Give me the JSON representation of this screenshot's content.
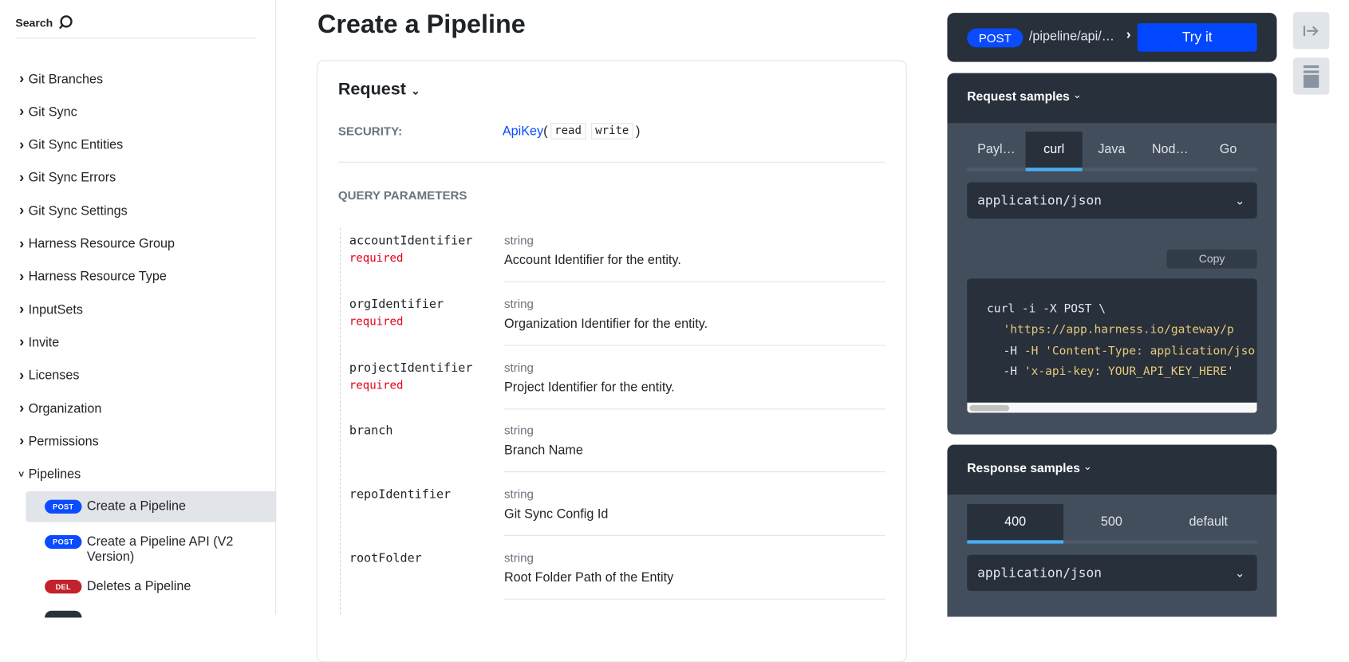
{
  "sidebar": {
    "search_label": "Search",
    "groups": [
      "Git Branches",
      "Git Sync",
      "Git Sync Entities",
      "Git Sync Errors",
      "Git Sync Settings",
      "Harness Resource Group",
      "Harness Resource Type",
      "InputSets",
      "Invite",
      "Licenses",
      "Organization",
      "Permissions",
      "Pipelines"
    ],
    "endpoints": [
      {
        "method": "POST",
        "label": "Create a Pipeline",
        "color": "#0a4bff"
      },
      {
        "method": "POST",
        "label": "Create a Pipeline API (V2 Version)",
        "color": "#0a4bff"
      },
      {
        "method": "DEL",
        "label": "Deletes a Pipeline",
        "color": "#c1222b"
      }
    ]
  },
  "main": {
    "title": "Create a Pipeline",
    "request_label": "Request",
    "security_label": "SECURITY:",
    "security_scheme": "ApiKey",
    "scopes": [
      "read",
      "write"
    ],
    "query_label": "QUERY PARAMETERS",
    "params": [
      {
        "name": "accountIdentifier",
        "required": "required",
        "type": "string",
        "desc": "Account Identifier for the entity."
      },
      {
        "name": "orgIdentifier",
        "required": "required",
        "type": "string",
        "desc": "Organization Identifier for the entity."
      },
      {
        "name": "projectIdentifier",
        "required": "required",
        "type": "string",
        "desc": "Project Identifier for the entity."
      },
      {
        "name": "branch",
        "type": "string",
        "desc": "Branch Name"
      },
      {
        "name": "repoIdentifier",
        "type": "string",
        "desc": "Git Sync Config Id"
      },
      {
        "name": "rootFolder",
        "type": "string",
        "desc": "Root Folder Path of the Entity"
      }
    ]
  },
  "right": {
    "method": "POST",
    "path": "/pipeline/api/…",
    "try_label": "Try it",
    "request_samples": {
      "title": "Request samples",
      "tabs": [
        "Payl…",
        "curl",
        "Java",
        "Nod…",
        "Go"
      ],
      "active": "curl",
      "content_type": "application/json",
      "copy_label": "Copy",
      "code": [
        "curl -i -X POST \\",
        "'https://app.harness.io/gateway/p",
        "-H 'Content-Type: application/jso",
        "'x-api-key: YOUR_API_KEY_HERE'"
      ]
    },
    "response_samples": {
      "title": "Response samples",
      "tabs": [
        "400",
        "500",
        "default"
      ],
      "active": "400",
      "content_type": "application/json"
    }
  },
  "colors": {
    "accent": "#0a4bff",
    "dark_panel": "#27303b",
    "mid_panel": "#424e5c",
    "tab_underline": "#4aaef2",
    "required": "#e5001a"
  }
}
